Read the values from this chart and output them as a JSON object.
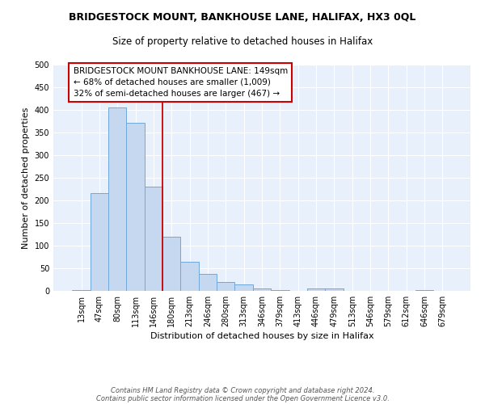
{
  "title1": "BRIDGESTOCK MOUNT, BANKHOUSE LANE, HALIFAX, HX3 0QL",
  "title2": "Size of property relative to detached houses in Halifax",
  "xlabel": "Distribution of detached houses by size in Halifax",
  "ylabel": "Number of detached properties",
  "categories": [
    "13sqm",
    "47sqm",
    "80sqm",
    "113sqm",
    "146sqm",
    "180sqm",
    "213sqm",
    "246sqm",
    "280sqm",
    "313sqm",
    "346sqm",
    "379sqm",
    "413sqm",
    "446sqm",
    "479sqm",
    "513sqm",
    "546sqm",
    "579sqm",
    "612sqm",
    "646sqm",
    "679sqm"
  ],
  "values": [
    2,
    216,
    405,
    372,
    230,
    120,
    65,
    37,
    19,
    15,
    6,
    2,
    0,
    5,
    5,
    0,
    0,
    0,
    0,
    2,
    0
  ],
  "bar_color": "#c5d8f0",
  "bar_edge_color": "#6fa8dc",
  "vline_color": "#cc0000",
  "vline_x_index": 4,
  "annotation_text": "BRIDGESTOCK MOUNT BANKHOUSE LANE: 149sqm\n← 68% of detached houses are smaller (1,009)\n32% of semi-detached houses are larger (467) →",
  "annotation_box_color": "#ffffff",
  "annotation_box_edge": "#cc0000",
  "ylim": [
    0,
    500
  ],
  "yticks": [
    0,
    50,
    100,
    150,
    200,
    250,
    300,
    350,
    400,
    450,
    500
  ],
  "footnote1": "Contains HM Land Registry data © Crown copyright and database right 2024.",
  "footnote2": "Contains public sector information licensed under the Open Government Licence v3.0.",
  "background_color": "#e8f0fb",
  "fig_bg": "#ffffff",
  "title1_fontsize": 9,
  "title2_fontsize": 8.5,
  "axis_label_fontsize": 8,
  "tick_fontsize": 7,
  "annot_fontsize": 7.5,
  "footnote_fontsize": 6
}
